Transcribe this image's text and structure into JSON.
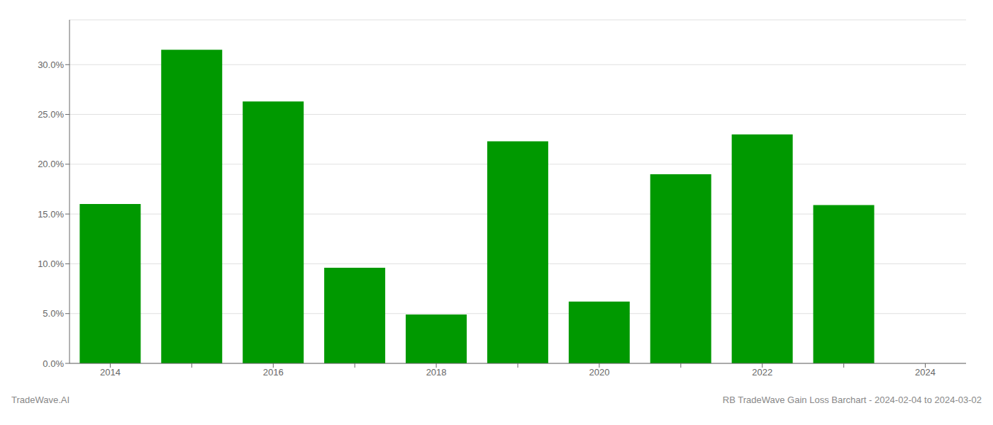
{
  "chart_data": {
    "type": "bar",
    "categories": [
      "2014",
      null,
      "2016",
      null,
      "2018",
      null,
      "2020",
      null,
      "2022",
      null,
      "2024"
    ],
    "values": [
      0.16,
      0.315,
      0.263,
      0.096,
      0.049,
      0.223,
      0.062,
      0.19,
      0.23,
      0.159,
      null
    ],
    "color": "#009900",
    "ylim": [
      0,
      0.345
    ],
    "yticks": [
      {
        "value": 0.0,
        "label": "0.0%"
      },
      {
        "value": 0.05,
        "label": "5.0%"
      },
      {
        "value": 0.1,
        "label": "10.0%"
      },
      {
        "value": 0.15,
        "label": "15.0%"
      },
      {
        "value": 0.2,
        "label": "20.0%"
      },
      {
        "value": 0.25,
        "label": "25.0%"
      },
      {
        "value": 0.3,
        "label": "30.0%"
      }
    ],
    "grid": true,
    "annotations": [
      "TradeWave.AI",
      "RB TradeWave Gain Loss Barchart - 2024-02-04 to 2024-03-02"
    ]
  }
}
